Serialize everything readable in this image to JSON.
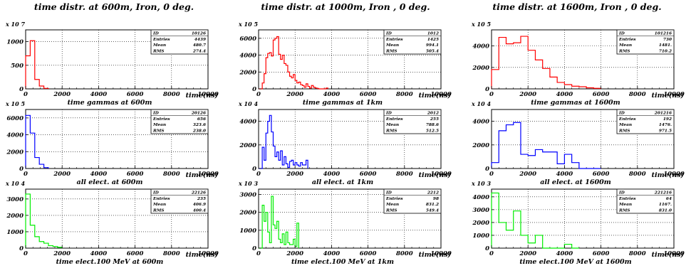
{
  "columns": [
    {
      "title": "time  distr. at 600m, Iron, 0 deg."
    },
    {
      "title": "time  distr. at 1000m, Iron , 0 deg."
    },
    {
      "title": "time  distr. at 1600m, Iron , 0 deg."
    }
  ],
  "colors": {
    "gamma": "#ff0000",
    "electron": "#0000ff",
    "elec100": "#00ee00",
    "axis": "#000000",
    "grid": "#000000"
  },
  "chart_data": [
    {
      "type": "histogram",
      "row": 0,
      "col": 0,
      "color": "gamma",
      "xlabel": "time gammas at 600m",
      "xunit": "time(ns)",
      "exponent": "x 10 7",
      "xlim": [
        0,
        10000
      ],
      "ylim": [
        0,
        1250
      ],
      "xticks": [
        0,
        2000,
        4000,
        6000,
        8000,
        10000
      ],
      "yticks": [
        0,
        500,
        1000
      ],
      "bin": 250,
      "values": [
        700,
        1020,
        200,
        60,
        10
      ],
      "stats": {
        "ID": "10126",
        "Entries": "4439",
        "Mean": "480.7",
        "RMS": "274.4"
      }
    },
    {
      "type": "histogram",
      "row": 0,
      "col": 1,
      "color": "gamma",
      "xlabel": "time gammas at 1km",
      "xunit": "time(ns)",
      "exponent": "x 10 5",
      "xlim": [
        0,
        10000
      ],
      "ylim": [
        0,
        7000
      ],
      "xticks": [
        0,
        2000,
        4000,
        6000,
        8000,
        10000
      ],
      "yticks": [
        0,
        2000,
        4000,
        6000
      ],
      "bin": 100,
      "values": [
        0,
        0,
        700,
        1800,
        3700,
        4200,
        4300,
        3900,
        5800,
        6000,
        6200,
        4100,
        3500,
        4000,
        3000,
        2800,
        2000,
        1500,
        1300,
        1700,
        1000,
        700,
        800,
        500,
        400,
        200,
        600,
        300,
        100,
        400,
        200,
        100,
        50,
        0,
        0,
        0,
        0,
        100
      ],
      "stats": {
        "ID": "1012",
        "Entries": "1425",
        "Mean": "994.1",
        "RMS": "505.4"
      }
    },
    {
      "type": "histogram",
      "row": 0,
      "col": 2,
      "color": "gamma",
      "xlabel": "time gammas at 1600m",
      "xunit": "time(ns)",
      "exponent": "x 10 5",
      "xlim": [
        0,
        10000
      ],
      "ylim": [
        0,
        5500
      ],
      "xticks": [
        0,
        2000,
        4000,
        6000,
        8000,
        10000
      ],
      "yticks": [
        0,
        2000,
        4000
      ],
      "bin": 400,
      "values": [
        1800,
        4800,
        4200,
        4300,
        4900,
        3600,
        2700,
        1900,
        1100,
        600,
        400,
        250,
        200,
        100,
        50
      ],
      "stats": {
        "ID": "101216",
        "Entries": "730",
        "Mean": "1481.",
        "RMS": "710.2"
      }
    },
    {
      "type": "histogram",
      "row": 1,
      "col": 0,
      "color": "electron",
      "xlabel": "all elect. at 600m",
      "xunit": "time(ns)",
      "exponent": "x 10 5",
      "xlim": [
        0,
        10000
      ],
      "ylim": [
        0,
        7000
      ],
      "xticks": [
        0,
        2000,
        4000,
        6000,
        8000,
        10000
      ],
      "yticks": [
        0,
        2000,
        4000,
        6000
      ],
      "bin": 250,
      "values": [
        6300,
        4200,
        1300,
        500,
        100
      ],
      "stats": {
        "ID": "20126",
        "Entries": "656",
        "Mean": "323.6",
        "RMS": "238.0"
      }
    },
    {
      "type": "histogram",
      "row": 1,
      "col": 1,
      "color": "electron",
      "xlabel": "all elect. at 1km",
      "xunit": "time(ns)",
      "exponent": "x 10 4",
      "xlim": [
        0,
        10000
      ],
      "ylim": [
        0,
        5000
      ],
      "xticks": [
        0,
        2000,
        4000,
        6000,
        8000,
        10000
      ],
      "yticks": [
        0,
        2000,
        4000
      ],
      "bin": 100,
      "values": [
        0,
        0,
        1800,
        700,
        3000,
        4000,
        4500,
        3100,
        1900,
        1000,
        1400,
        700,
        1500,
        300,
        1000,
        400,
        100,
        600,
        700,
        300,
        500,
        300,
        200,
        500,
        300,
        300,
        700
      ],
      "stats": {
        "ID": "2012",
        "Entries": "255",
        "Mean": "788.6",
        "RMS": "512.5"
      }
    },
    {
      "type": "histogram",
      "row": 1,
      "col": 2,
      "color": "electron",
      "xlabel": "all elect. at 1600m",
      "xunit": "time(ns)",
      "exponent": "x 10 4",
      "xlim": [
        0,
        10000
      ],
      "ylim": [
        0,
        5000
      ],
      "xticks": [
        0,
        2000,
        4000,
        6000,
        8000,
        10000
      ],
      "yticks": [
        0,
        2000,
        4000
      ],
      "bin": 400,
      "values": [
        500,
        3200,
        3700,
        3900,
        1200,
        1100,
        1600,
        1400,
        1400,
        400,
        1200,
        500,
        0,
        0,
        0
      ],
      "stats": {
        "ID": "201216",
        "Entries": "192",
        "Mean": "1476.",
        "RMS": "971.5"
      }
    },
    {
      "type": "histogram",
      "row": 2,
      "col": 0,
      "color": "elec100",
      "xlabel": "time elect.100 MeV at 600m",
      "xunit": "time(ns)",
      "exponent": "x 10 4",
      "xlim": [
        0,
        10000
      ],
      "ylim": [
        0,
        3600
      ],
      "xticks": [
        0,
        2000,
        4000,
        6000,
        8000,
        10000
      ],
      "yticks": [
        0,
        1000,
        2000,
        3000
      ],
      "bin": 250,
      "values": [
        3300,
        1400,
        700,
        400,
        300,
        150,
        100,
        50
      ],
      "stats": {
        "ID": "22126",
        "Entries": "235",
        "Mean": "406.9",
        "RMS": "400.4"
      }
    },
    {
      "type": "histogram",
      "row": 2,
      "col": 1,
      "color": "elec100",
      "xlabel": "time elect.100 MeV at 1km",
      "xunit": "time(ns)",
      "exponent": "x 10 3",
      "xlim": [
        0,
        10000
      ],
      "ylim": [
        0,
        3300
      ],
      "xticks": [
        0,
        2000,
        4000,
        6000,
        8000,
        10000
      ],
      "yticks": [
        0,
        1000,
        2000,
        3000
      ],
      "bin": 100,
      "values": [
        0,
        0,
        2400,
        1500,
        2000,
        900,
        300,
        2900,
        1300,
        1100,
        1500,
        500,
        300,
        800,
        200,
        900,
        300,
        200,
        200,
        500,
        100,
        1400
      ],
      "stats": {
        "ID": "2212",
        "Entries": "98",
        "Mean": "831.2",
        "RMS": "549.4"
      }
    },
    {
      "type": "histogram",
      "row": 2,
      "col": 2,
      "color": "elec100",
      "xlabel": "time elect.100 MeV at 1600m",
      "xunit": "time(ns)",
      "exponent": "x 10 3",
      "xlim": [
        0,
        10000
      ],
      "ylim": [
        0,
        4600
      ],
      "xticks": [
        0,
        2000,
        4000,
        6000,
        8000,
        10000
      ],
      "yticks": [
        0,
        1000,
        2000,
        3000,
        4000
      ],
      "bin": 400,
      "values": [
        4300,
        2000,
        1400,
        2900,
        1000,
        400,
        1000,
        0,
        0,
        0,
        300,
        0
      ],
      "stats": {
        "ID": "221216",
        "Entries": "64",
        "Mean": "1167.",
        "RMS": "831.0"
      }
    }
  ]
}
